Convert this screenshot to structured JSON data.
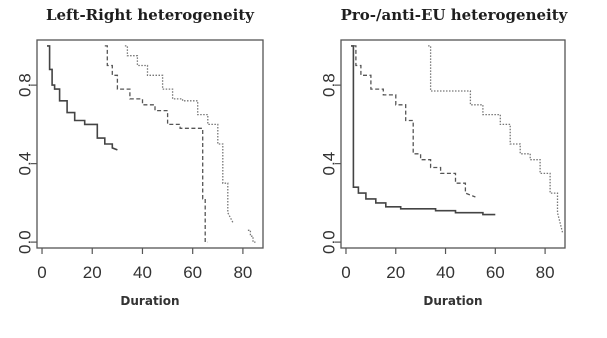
{
  "chart_data": [
    {
      "type": "line",
      "title": "Left-Right heterogeneity",
      "xlabel": "Duration",
      "ylabel": "",
      "xlim": [
        -2,
        88
      ],
      "ylim": [
        -0.03,
        1.03
      ],
      "xticks": [
        0,
        20,
        40,
        60,
        80
      ],
      "yticks": [
        0.0,
        0.4,
        0.8
      ],
      "ytick_labels": [
        "0.0",
        "0.4",
        "0.8"
      ],
      "grid": false,
      "series": [
        {
          "style": "solid",
          "color": "#444444",
          "x": [
            2,
            3,
            3,
            4,
            4,
            5,
            5,
            7,
            7,
            10,
            10,
            13,
            13,
            17,
            17,
            22,
            22,
            25,
            25,
            28,
            28,
            30
          ],
          "y": [
            1.0,
            1.0,
            0.88,
            0.88,
            0.8,
            0.8,
            0.78,
            0.78,
            0.72,
            0.72,
            0.66,
            0.66,
            0.62,
            0.62,
            0.6,
            0.6,
            0.53,
            0.53,
            0.5,
            0.5,
            0.48,
            0.47
          ]
        },
        {
          "style": "dashed",
          "color": "#555555",
          "x": [
            25,
            26,
            26,
            28,
            28,
            30,
            30,
            35,
            35,
            40,
            40,
            45,
            45,
            50,
            50,
            55,
            55,
            60,
            60,
            64,
            64,
            65,
            65,
            66
          ],
          "y": [
            1.0,
            1.0,
            0.9,
            0.9,
            0.85,
            0.85,
            0.78,
            0.78,
            0.73,
            0.73,
            0.7,
            0.7,
            0.67,
            0.67,
            0.6,
            0.6,
            0.58,
            0.58,
            0.58,
            0.58,
            0.22,
            0.22,
            0.0,
            0.0
          ]
        },
        {
          "style": "dotted",
          "color": "#777777",
          "x": [
            33,
            34,
            34,
            38,
            38,
            42,
            42,
            48,
            48,
            52,
            52,
            56,
            56,
            62,
            62,
            66,
            66,
            70,
            70,
            72,
            72,
            74,
            74,
            76
          ],
          "y": [
            1.0,
            1.0,
            0.95,
            0.95,
            0.9,
            0.9,
            0.85,
            0.85,
            0.78,
            0.78,
            0.73,
            0.73,
            0.72,
            0.72,
            0.65,
            0.65,
            0.6,
            0.6,
            0.5,
            0.5,
            0.3,
            0.3,
            0.15,
            0.1
          ]
        },
        {
          "style": "dotted",
          "color": "#777777",
          "x": [
            82,
            83,
            83,
            84,
            84,
            85
          ],
          "y": [
            0.06,
            0.06,
            0.03,
            0.03,
            0.0,
            0.0
          ]
        }
      ]
    },
    {
      "type": "line",
      "title": "Pro-/anti-EU heterogeneity",
      "xlabel": "Duration",
      "ylabel": "",
      "xlim": [
        -2,
        88
      ],
      "ylim": [
        -0.03,
        1.03
      ],
      "xticks": [
        0,
        20,
        40,
        60,
        80
      ],
      "yticks": [
        0.0,
        0.4,
        0.8
      ],
      "ytick_labels": [
        "0.0",
        "0.4",
        "0.8"
      ],
      "grid": false,
      "series": [
        {
          "style": "solid",
          "color": "#444444",
          "x": [
            2,
            3,
            3,
            5,
            5,
            8,
            8,
            12,
            12,
            16,
            16,
            22,
            22,
            28,
            28,
            36,
            36,
            44,
            44,
            55,
            55,
            60
          ],
          "y": [
            1.0,
            1.0,
            0.28,
            0.28,
            0.25,
            0.25,
            0.22,
            0.22,
            0.2,
            0.2,
            0.18,
            0.18,
            0.17,
            0.17,
            0.17,
            0.17,
            0.16,
            0.16,
            0.15,
            0.15,
            0.14,
            0.14
          ]
        },
        {
          "style": "dashed",
          "color": "#555555",
          "x": [
            3,
            4,
            4,
            6,
            6,
            10,
            10,
            15,
            15,
            20,
            20,
            24,
            24,
            27,
            27,
            30,
            30,
            34,
            34,
            38,
            38,
            44,
            44,
            48,
            48,
            52
          ],
          "y": [
            1.0,
            1.0,
            0.9,
            0.9,
            0.85,
            0.85,
            0.78,
            0.78,
            0.75,
            0.75,
            0.7,
            0.7,
            0.62,
            0.62,
            0.45,
            0.45,
            0.42,
            0.42,
            0.38,
            0.38,
            0.35,
            0.35,
            0.3,
            0.3,
            0.25,
            0.23
          ]
        },
        {
          "style": "dotted",
          "color": "#777777",
          "x": [
            33,
            34,
            34,
            50,
            50,
            55,
            55,
            62,
            62,
            66,
            66,
            70,
            70,
            74,
            74,
            78,
            78,
            82,
            82,
            85,
            85,
            87
          ],
          "y": [
            1.0,
            1.0,
            0.77,
            0.77,
            0.7,
            0.7,
            0.65,
            0.65,
            0.6,
            0.6,
            0.5,
            0.5,
            0.45,
            0.45,
            0.42,
            0.42,
            0.35,
            0.35,
            0.25,
            0.25,
            0.15,
            0.05
          ]
        }
      ]
    }
  ]
}
